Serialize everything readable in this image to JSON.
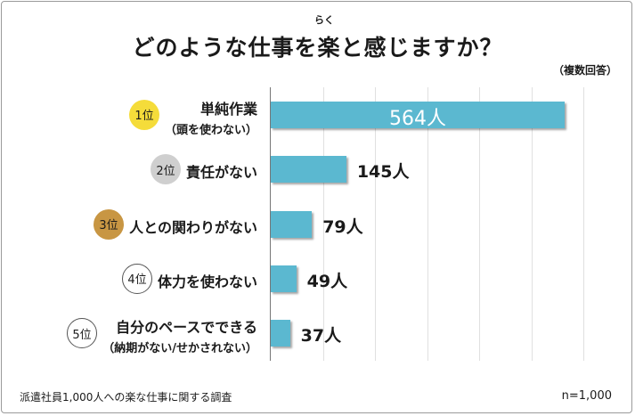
{
  "title": "どのような仕事を楽と感じますか？",
  "ruby": "らく",
  "note": "（複数回答）",
  "footer": {
    "source": "派遣社員1,000人への楽な仕事に関する調査",
    "sample": "n=1,000"
  },
  "chart_data": {
    "type": "bar",
    "orientation": "horizontal",
    "title": "どのような仕事を楽と感じますか？",
    "categories": [
      "単純作業（頭を使わない）",
      "責任がない",
      "人との関わりがない",
      "体力を使わない",
      "自分のペースでできる（納期がない/せかされない）"
    ],
    "values": [
      564,
      145,
      79,
      49,
      37
    ],
    "xlim": [
      0,
      600
    ],
    "grid": true,
    "colors": {
      "bar": "#5bb8d0"
    },
    "rows": [
      {
        "rank": "1位",
        "main": "単純作業",
        "sub": "（頭を使わない）",
        "value": 564,
        "value_label": "564人",
        "badge": "gold"
      },
      {
        "rank": "2位",
        "main": "責任がない",
        "sub": "",
        "value": 145,
        "value_label": "145人",
        "badge": "silver"
      },
      {
        "rank": "3位",
        "main": "人との関わりがない",
        "sub": "",
        "value": 79,
        "value_label": "79人",
        "badge": "bronze"
      },
      {
        "rank": "4位",
        "main": "体力を使わない",
        "sub": "",
        "value": 49,
        "value_label": "49人",
        "badge": "plain"
      },
      {
        "rank": "5位",
        "main": "自分のペースでできる",
        "sub": "（納期がない/せかされない）",
        "value": 37,
        "value_label": "37人",
        "badge": "plain"
      }
    ]
  }
}
